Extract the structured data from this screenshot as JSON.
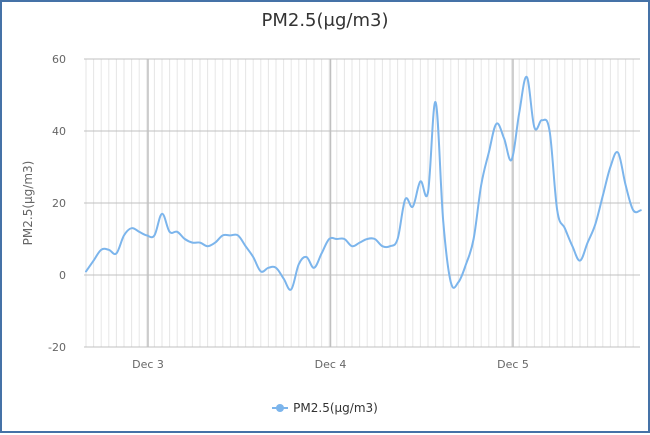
{
  "chart_data": {
    "type": "line",
    "title": "PM2.5(μg/m3)",
    "xlabel": "",
    "ylabel": "PM2.5(μg/m3)",
    "ylim": [
      -20,
      60
    ],
    "yticks": [
      60,
      40,
      20,
      0,
      -20
    ],
    "xtick_labels": [
      "Dec 3",
      "Dec 4",
      "Dec 5"
    ],
    "x_interval": "hourly",
    "x_start": "Dec 2 16:00",
    "grid": true,
    "legend_position": "bottom",
    "series": [
      {
        "name": "PM2.5(μg/m3)",
        "color": "#7cb5ec",
        "values": [
          1,
          4,
          7,
          7,
          6,
          11,
          13,
          12,
          11,
          11,
          17,
          12,
          12,
          10,
          9,
          9,
          8,
          9,
          11,
          11,
          11,
          8,
          5,
          1,
          2,
          2,
          -1,
          -4,
          3,
          5,
          2,
          6,
          10,
          10,
          10,
          8,
          9,
          10,
          10,
          8,
          8,
          10,
          21,
          19,
          26,
          23,
          48,
          15,
          -2,
          -2,
          3,
          10,
          25,
          34,
          42,
          38,
          32,
          45,
          55,
          41,
          43,
          40,
          18,
          13,
          8,
          4,
          9,
          14,
          22,
          30,
          34,
          25,
          18,
          18
        ]
      }
    ]
  },
  "header": {
    "title": "PM2.5(μg/m3)"
  },
  "axes": {
    "y_label": "PM2.5(μg/m3)",
    "y_ticks": [
      "60",
      "40",
      "20",
      "0",
      "-20"
    ],
    "x_ticks": [
      "Dec 3",
      "Dec 4",
      "Dec 5"
    ]
  },
  "legend": {
    "items": [
      {
        "label": "PM2.5(μg/m3)",
        "color": "#7cb5ec"
      }
    ]
  },
  "colors": {
    "line": "#7cb5ec",
    "border": "#4572a7",
    "grid_major": "#c0c0c0",
    "grid_minor": "#e6e6e6"
  }
}
